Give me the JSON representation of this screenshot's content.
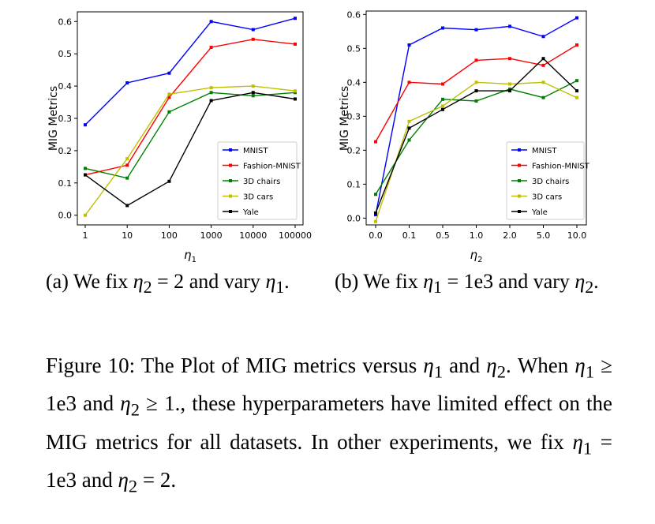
{
  "chart_data": [
    {
      "type": "line",
      "ylabel": "MIG Metrics",
      "xlabel": "η1",
      "x": [
        "1",
        "10",
        "100",
        "1000",
        "10000",
        "100000"
      ],
      "ylim": [
        -0.03,
        0.63
      ],
      "yticks": [
        "0.0",
        "0.1",
        "0.2",
        "0.3",
        "0.4",
        "0.5",
        "0.6"
      ],
      "legend_position": "lower-right",
      "series": [
        {
          "name": "MNIST",
          "color": "#0000ff",
          "values": [
            0.28,
            0.41,
            0.44,
            0.6,
            0.575,
            0.61
          ]
        },
        {
          "name": "Fashion-MNIST",
          "color": "#ff0000",
          "values": [
            0.125,
            0.155,
            0.365,
            0.52,
            0.545,
            0.53
          ]
        },
        {
          "name": "3D chairs",
          "color": "#008000",
          "values": [
            0.145,
            0.115,
            0.32,
            0.38,
            0.37,
            0.38
          ]
        },
        {
          "name": "3D cars",
          "color": "#bfbf00",
          "values": [
            0.0,
            0.175,
            0.375,
            0.395,
            0.4,
            0.385
          ]
        },
        {
          "name": "Yale",
          "color": "#000000",
          "values": [
            0.125,
            0.03,
            0.105,
            0.355,
            0.38,
            0.36
          ]
        }
      ]
    },
    {
      "type": "line",
      "ylabel": "MIG Metrics",
      "xlabel": "η2",
      "x": [
        "0.0",
        "0.1",
        "0.5",
        "1.0",
        "2.0",
        "5.0",
        "10.0"
      ],
      "ylim": [
        -0.02,
        0.61
      ],
      "yticks": [
        "0.0",
        "0.1",
        "0.2",
        "0.3",
        "0.4",
        "0.5",
        "0.6"
      ],
      "legend_position": "lower-right",
      "series": [
        {
          "name": "MNIST",
          "color": "#0000ff",
          "values": [
            0.01,
            0.51,
            0.56,
            0.555,
            0.565,
            0.535,
            0.59
          ]
        },
        {
          "name": "Fashion-MNIST",
          "color": "#ff0000",
          "values": [
            0.225,
            0.4,
            0.395,
            0.465,
            0.47,
            0.45,
            0.51
          ]
        },
        {
          "name": "3D chairs",
          "color": "#008000",
          "values": [
            0.07,
            0.23,
            0.35,
            0.345,
            0.38,
            0.355,
            0.405
          ]
        },
        {
          "name": "3D cars",
          "color": "#bfbf00",
          "values": [
            -0.01,
            0.285,
            0.33,
            0.4,
            0.395,
            0.4,
            0.355
          ]
        },
        {
          "name": "Yale",
          "color": "#000000",
          "values": [
            0.015,
            0.265,
            0.32,
            0.375,
            0.375,
            0.47,
            0.375
          ]
        }
      ]
    }
  ],
  "captions": {
    "a": {
      "prefix": "(a) We fix ",
      "eta2": "η",
      "eta2_sub": "2",
      "eq": " = 2",
      "mid": " and vary ",
      "eta1": "η",
      "eta1_sub": "1",
      "end": "."
    },
    "b": {
      "prefix": "(b) We fix ",
      "eta1": "η",
      "eta1_sub": "1",
      "eq": " = 1e3",
      "mid": " and vary ",
      "eta2": "η",
      "eta2_sub": "2",
      "end": "."
    }
  },
  "figure_caption": {
    "p1": "Figure 10: The Plot of MIG metrics versus ",
    "p2": " and ",
    "p3": ". When ",
    "p4": " ≥ 1e3 and ",
    "p5": " ≥ 1., these hyperparameters have limited effect on the MIG metrics for all datasets. In other experiments, we fix ",
    "p6": " = 1e3 and ",
    "p7": " = 2.",
    "eta": "η",
    "sub1": "1",
    "sub2": "2"
  }
}
